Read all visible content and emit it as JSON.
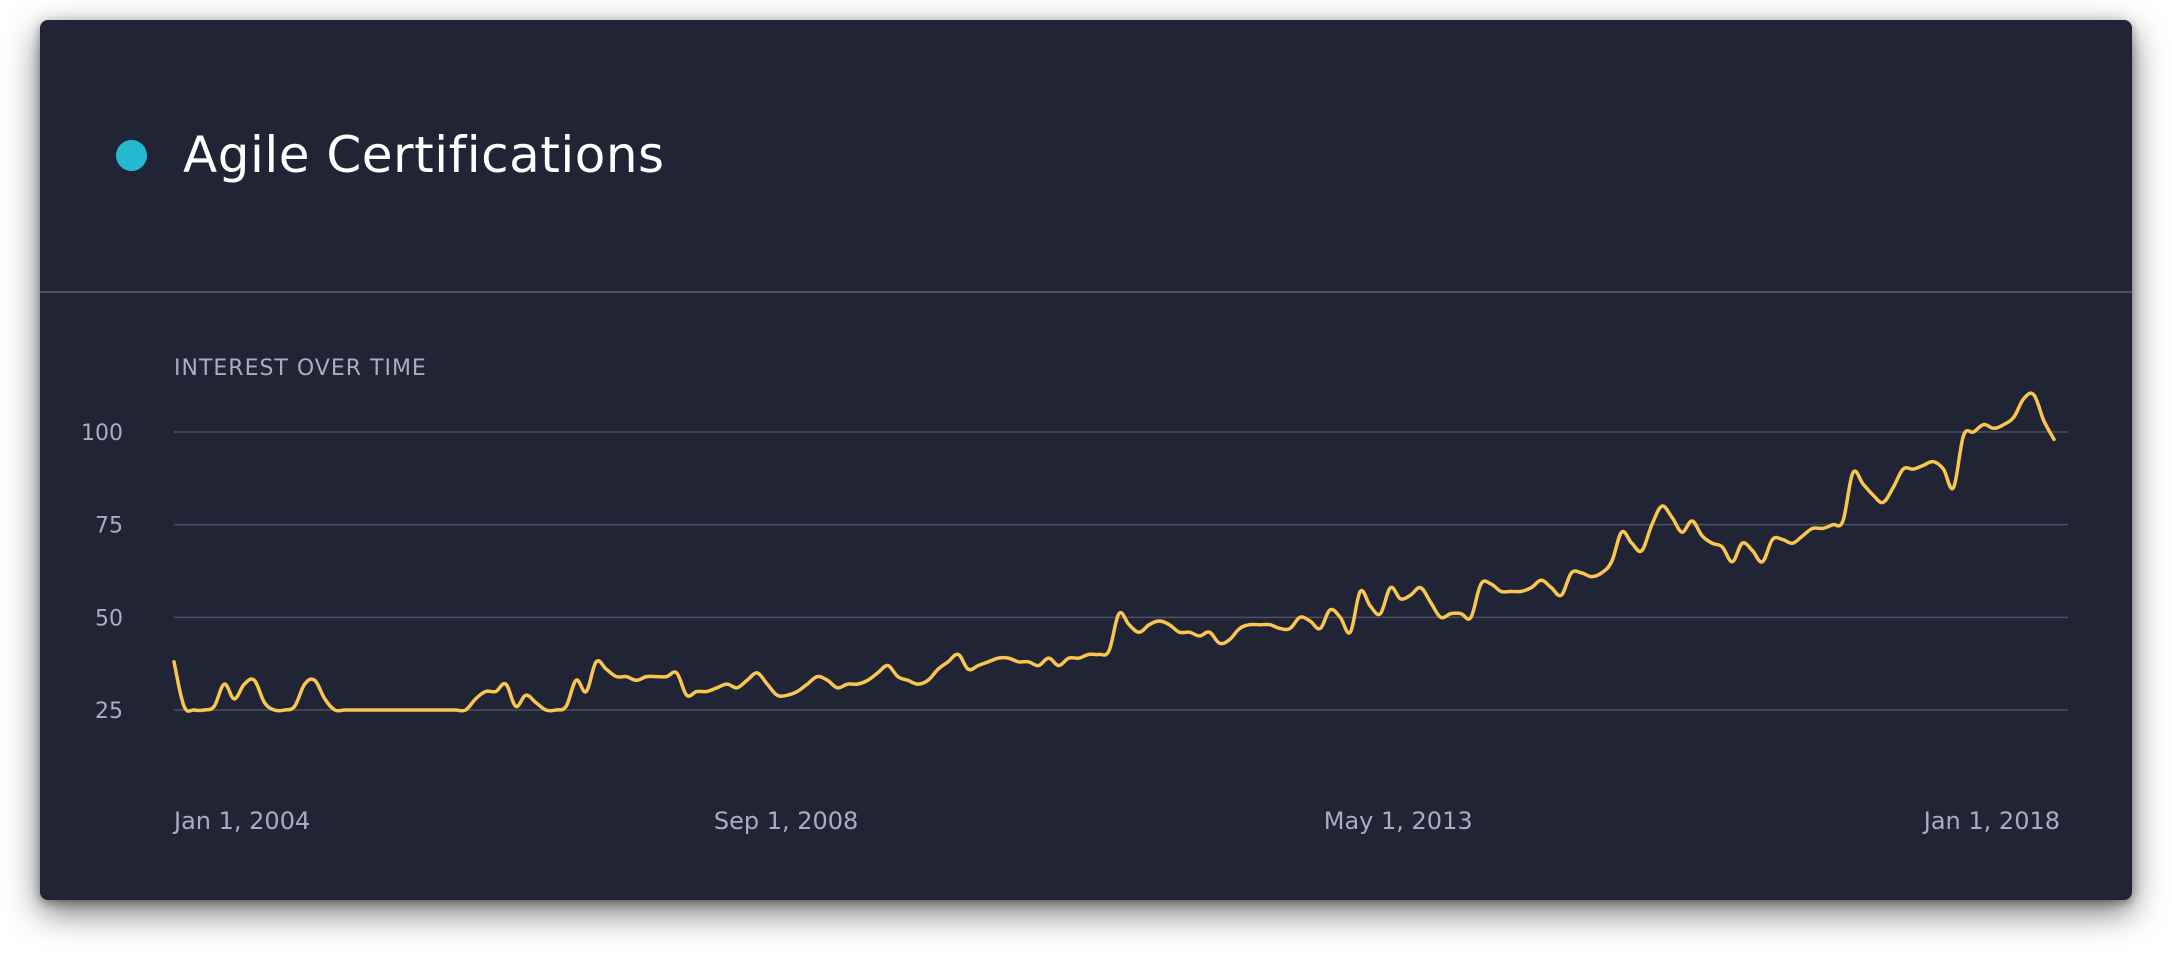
{
  "header": {
    "title": "Agile Certifications",
    "dot_color": "#25b9cf"
  },
  "chart_data": {
    "type": "line",
    "title": "Agile Certifications",
    "subtitle": "INTEREST OVER TIME",
    "xlabel": "",
    "ylabel": "",
    "line_color": "#f9c74f",
    "grid": true,
    "ylim": [
      25,
      100
    ],
    "yticks": [
      25,
      50,
      75,
      100
    ],
    "x_start": "2004-01",
    "x_end": "2018-05",
    "xticks": [
      {
        "date": "2004-01",
        "label": "Jan 1, 2004"
      },
      {
        "date": "2008-09",
        "label": "Sep 1, 2008"
      },
      {
        "date": "2013-05",
        "label": "May 1, 2013"
      },
      {
        "date": "2018-01",
        "label": "Jan 1, 2018"
      }
    ],
    "series": [
      {
        "values": [
          38,
          26,
          25,
          25,
          26,
          32,
          28,
          32,
          33,
          27,
          25,
          25,
          26,
          32,
          33,
          28,
          25,
          25,
          25,
          25,
          25,
          25,
          25,
          25,
          25,
          25,
          25,
          25,
          25,
          25,
          28,
          30,
          30,
          32,
          26,
          29,
          27,
          25,
          25,
          26,
          33,
          30,
          38,
          36,
          34,
          34,
          33,
          34,
          34,
          34,
          35,
          29,
          30,
          30,
          31,
          32,
          31,
          33,
          35,
          32,
          29,
          29,
          30,
          32,
          34,
          33,
          31,
          32,
          32,
          33,
          35,
          37,
          34,
          33,
          32,
          33,
          36,
          38,
          40,
          36,
          37,
          38,
          39,
          39,
          38,
          38,
          37,
          39,
          37,
          39,
          39,
          40,
          40,
          41,
          51,
          48,
          46,
          48,
          49,
          48,
          46,
          46,
          45,
          46,
          43,
          44,
          47,
          48,
          48,
          48,
          47,
          47,
          50,
          49,
          47,
          52,
          50,
          46,
          57,
          53,
          51,
          58,
          55,
          56,
          58,
          54,
          50,
          51,
          51,
          50,
          59,
          59,
          57,
          57,
          57,
          58,
          60,
          58,
          56,
          62,
          62,
          61,
          62,
          65,
          73,
          70,
          68,
          75,
          80,
          77,
          73,
          76,
          72,
          70,
          69,
          65,
          70,
          68,
          65,
          71,
          71,
          70,
          72,
          74,
          74,
          75,
          76,
          89,
          86,
          83,
          81,
          85,
          90,
          90,
          91,
          92,
          90,
          85,
          99,
          100,
          102,
          101,
          102,
          104,
          109,
          110,
          103,
          98
        ]
      }
    ]
  }
}
